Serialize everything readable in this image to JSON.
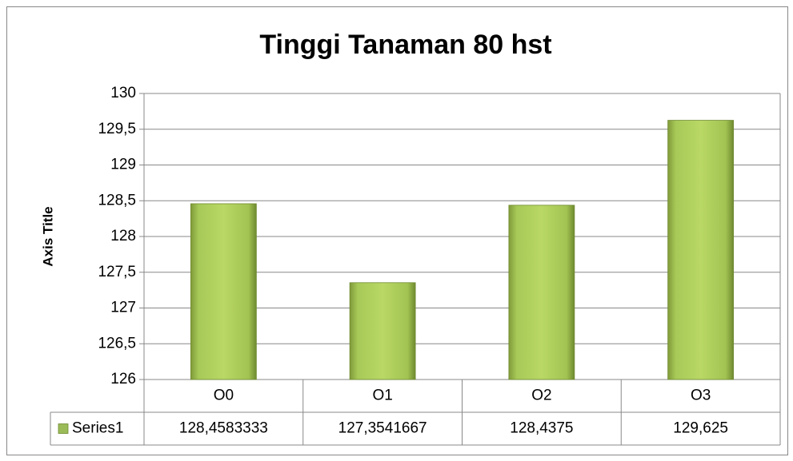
{
  "chart_data": {
    "type": "bar",
    "title": "Tinggi Tanaman 80 hst",
    "y_axis_label": "Axis Title",
    "categories": [
      "O0",
      "O1",
      "O2",
      "O3"
    ],
    "series": [
      {
        "name": "Series1",
        "color": "#9bbb59",
        "values": [
          128.4583333,
          127.3541667,
          128.4375,
          129.625
        ],
        "value_labels": [
          "128,4583333",
          "127,3541667",
          "128,4375",
          "129,625"
        ]
      }
    ],
    "ylim": [
      126,
      130
    ],
    "yticks": [
      126,
      {
        "value": 126.5,
        "label": "126,5"
      },
      127,
      {
        "value": 127.5,
        "label": "127,5"
      },
      128,
      {
        "value": 128.5,
        "label": "128,5"
      },
      129,
      {
        "value": 129.5,
        "label": "129,5"
      },
      130
    ],
    "grid": true
  }
}
